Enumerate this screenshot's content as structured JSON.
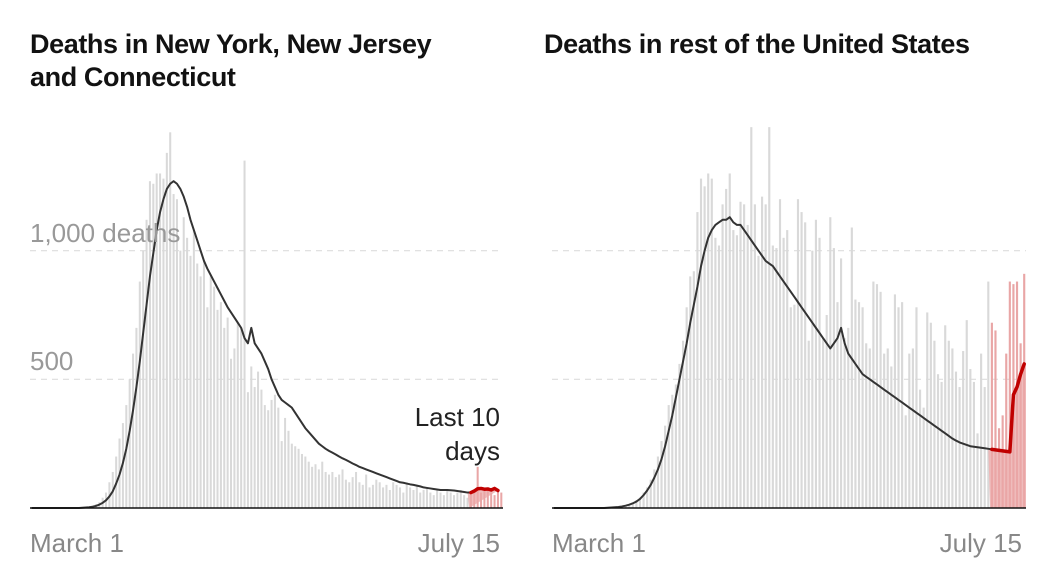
{
  "colors": {
    "bar": "#d9d9d9",
    "recent_bar": "#e9a6a6",
    "average_line": "#333333",
    "recent_line": "#c00000",
    "grid": "#dddddd",
    "baseline": "#111111"
  },
  "chart_data": [
    {
      "type": "bar",
      "title_lines": [
        "Deaths in New York, New Jersey",
        "and Connecticut"
      ],
      "y_tick_labels": [
        "1,000 deaths",
        "500"
      ],
      "y_ticks": [
        1000,
        500
      ],
      "ylim": [
        0,
        1500
      ],
      "x_labels": [
        "March 1",
        "July 15"
      ],
      "annotation": [
        "Last 10",
        "days"
      ],
      "highlight_last_n": 10,
      "grid": "dashed horizontal",
      "series": [
        {
          "kind": "daily",
          "values": [
            0,
            0,
            0,
            0,
            0,
            0,
            0,
            0,
            0,
            0,
            0,
            0,
            0,
            0,
            1,
            2,
            3,
            5,
            8,
            15,
            22,
            40,
            60,
            100,
            140,
            200,
            270,
            330,
            400,
            500,
            600,
            700,
            880,
            1000,
            1120,
            1270,
            1260,
            1300,
            1300,
            1280,
            1380,
            1460,
            1220,
            1200,
            1000,
            1130,
            1050,
            980,
            1080,
            950,
            900,
            960,
            780,
            900,
            860,
            770,
            800,
            700,
            740,
            580,
            620,
            720,
            700,
            1350,
            450,
            550,
            470,
            530,
            460,
            400,
            380,
            420,
            440,
            390,
            260,
            350,
            300,
            250,
            240,
            230,
            210,
            200,
            180,
            160,
            170,
            150,
            180,
            140,
            130,
            140,
            120,
            130,
            150,
            110,
            100,
            120,
            140,
            100,
            90,
            130,
            80,
            90,
            110,
            100,
            80,
            90,
            70,
            100,
            90,
            80,
            60,
            100,
            80,
            70,
            90,
            60,
            70,
            80,
            60,
            50,
            70,
            60,
            50,
            70,
            60,
            50,
            60,
            70,
            50,
            40,
            55,
            60,
            160,
            60,
            70,
            80,
            60,
            50,
            70,
            60
          ]
        },
        {
          "kind": "7-day average",
          "values": [
            0,
            0,
            0,
            0,
            0,
            0,
            0,
            0,
            0,
            0,
            0,
            0,
            0,
            0,
            0,
            1,
            2,
            3,
            5,
            8,
            13,
            20,
            30,
            45,
            65,
            95,
            130,
            175,
            230,
            300,
            380,
            470,
            570,
            680,
            790,
            900,
            990,
            1080,
            1150,
            1200,
            1240,
            1260,
            1270,
            1260,
            1240,
            1210,
            1170,
            1120,
            1080,
            1040,
            1000,
            960,
            930,
            905,
            880,
            855,
            830,
            805,
            780,
            760,
            740,
            720,
            700,
            660,
            640,
            700,
            640,
            620,
            600,
            570,
            540,
            500,
            470,
            440,
            420,
            410,
            400,
            390,
            370,
            350,
            330,
            310,
            295,
            280,
            265,
            250,
            240,
            230,
            222,
            215,
            208,
            200,
            193,
            187,
            180,
            173,
            167,
            160,
            155,
            150,
            145,
            140,
            135,
            130,
            125,
            120,
            115,
            110,
            105,
            100,
            98,
            95,
            92,
            90,
            87,
            84,
            80,
            78,
            76,
            74,
            72,
            70,
            70,
            70,
            69,
            68,
            66,
            64,
            62,
            60,
            60,
            66,
            75,
            76,
            73,
            74,
            70,
            76,
            68
          ]
        }
      ]
    },
    {
      "type": "bar",
      "title_lines": [
        "Deaths in rest of the United States"
      ],
      "y_tick_labels": [
        "",
        ""
      ],
      "y_ticks": [
        1000,
        500
      ],
      "ylim": [
        0,
        1500
      ],
      "x_labels": [
        "March 1",
        "July 15"
      ],
      "highlight_last_n": 10,
      "grid": "dashed horizontal",
      "series": [
        {
          "kind": "daily",
          "values": [
            0,
            0,
            0,
            0,
            0,
            0,
            0,
            0,
            0,
            0,
            0,
            0,
            0,
            0,
            0,
            1,
            2,
            3,
            4,
            5,
            8,
            12,
            20,
            30,
            40,
            60,
            80,
            110,
            150,
            200,
            260,
            320,
            400,
            440,
            480,
            560,
            650,
            780,
            900,
            920,
            1150,
            1280,
            1250,
            1300,
            1280,
            1050,
            1020,
            1180,
            1240,
            1300,
            1080,
            1060,
            1190,
            1180,
            1100,
            1480,
            1180,
            980,
            1210,
            1180,
            1480,
            1020,
            1010,
            1200,
            1050,
            1080,
            780,
            790,
            1200,
            1150,
            1110,
            650,
            1000,
            1120,
            1050,
            660,
            750,
            1130,
            1010,
            800,
            970,
            660,
            700,
            1090,
            810,
            800,
            780,
            640,
            620,
            880,
            870,
            840,
            600,
            620,
            550,
            830,
            780,
            800,
            360,
            600,
            620,
            780,
            460,
            390,
            760,
            720,
            650,
            520,
            490,
            710,
            650,
            620,
            530,
            470,
            610,
            730,
            540,
            490,
            290,
            600,
            470,
            880,
            720,
            690,
            310,
            360,
            600,
            880,
            870,
            880,
            640,
            910
          ]
        },
        {
          "kind": "7-day average",
          "values": [
            0,
            0,
            0,
            0,
            0,
            0,
            0,
            0,
            0,
            0,
            0,
            0,
            0,
            0,
            0,
            1,
            2,
            3,
            4,
            6,
            9,
            13,
            18,
            25,
            35,
            50,
            68,
            90,
            118,
            150,
            190,
            240,
            300,
            360,
            430,
            500,
            570,
            640,
            720,
            790,
            860,
            940,
            1000,
            1050,
            1080,
            1100,
            1110,
            1120,
            1120,
            1130,
            1110,
            1100,
            1100,
            1080,
            1060,
            1040,
            1020,
            1000,
            980,
            960,
            950,
            940,
            920,
            900,
            880,
            860,
            840,
            820,
            800,
            780,
            760,
            740,
            720,
            700,
            680,
            660,
            640,
            620,
            640,
            660,
            700,
            640,
            600,
            580,
            560,
            540,
            520,
            510,
            500,
            490,
            480,
            470,
            460,
            450,
            440,
            430,
            420,
            410,
            400,
            390,
            380,
            370,
            360,
            350,
            340,
            330,
            320,
            310,
            300,
            290,
            280,
            270,
            262,
            255,
            250,
            245,
            240,
            238,
            236,
            234,
            232,
            230,
            228,
            226,
            224,
            222,
            220,
            218,
            440,
            470,
            520,
            560,
            640,
            700,
            640,
            710
          ]
        }
      ]
    }
  ]
}
